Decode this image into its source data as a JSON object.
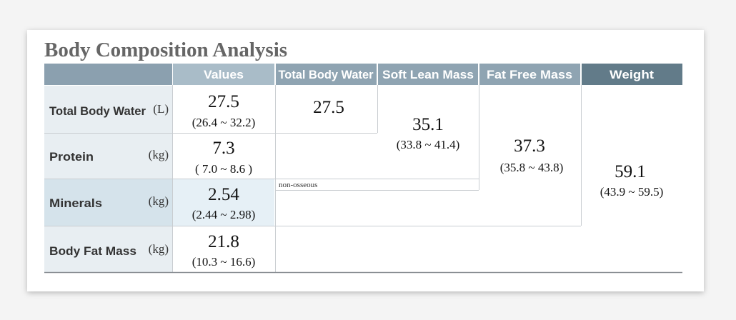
{
  "title": "Body Composition Analysis",
  "headers": [
    "Values",
    "Total Body Water",
    "Soft Lean Mass",
    "Fat Free Mass",
    "Weight"
  ],
  "rows": [
    {
      "label": "Total Body Water",
      "unit": "(L)",
      "value": 27.5,
      "range": "(26.4 ~ 32.2)"
    },
    {
      "label": "Protein",
      "unit": "(kg)",
      "value": 7.3,
      "range": "( 7.0 ~ 8.6 )"
    },
    {
      "label": "Minerals",
      "unit": "(kg)",
      "value": 2.54,
      "range": "(2.44 ~ 2.98)"
    },
    {
      "label": "Body Fat Mass",
      "unit": "(kg)",
      "value": 21.8,
      "range": "(10.3 ~ 16.6)"
    }
  ],
  "total_body_water": {
    "value": 27.5
  },
  "soft_lean_mass": {
    "value": 35.1,
    "range": "(33.8 ~ 41.4)",
    "note": "non-osseous"
  },
  "fat_free_mass": {
    "value": 37.3,
    "range": "(35.8 ~ 43.8)"
  },
  "weight": {
    "value": 59.1,
    "range": "(43.9 ~ 59.5)"
  }
}
